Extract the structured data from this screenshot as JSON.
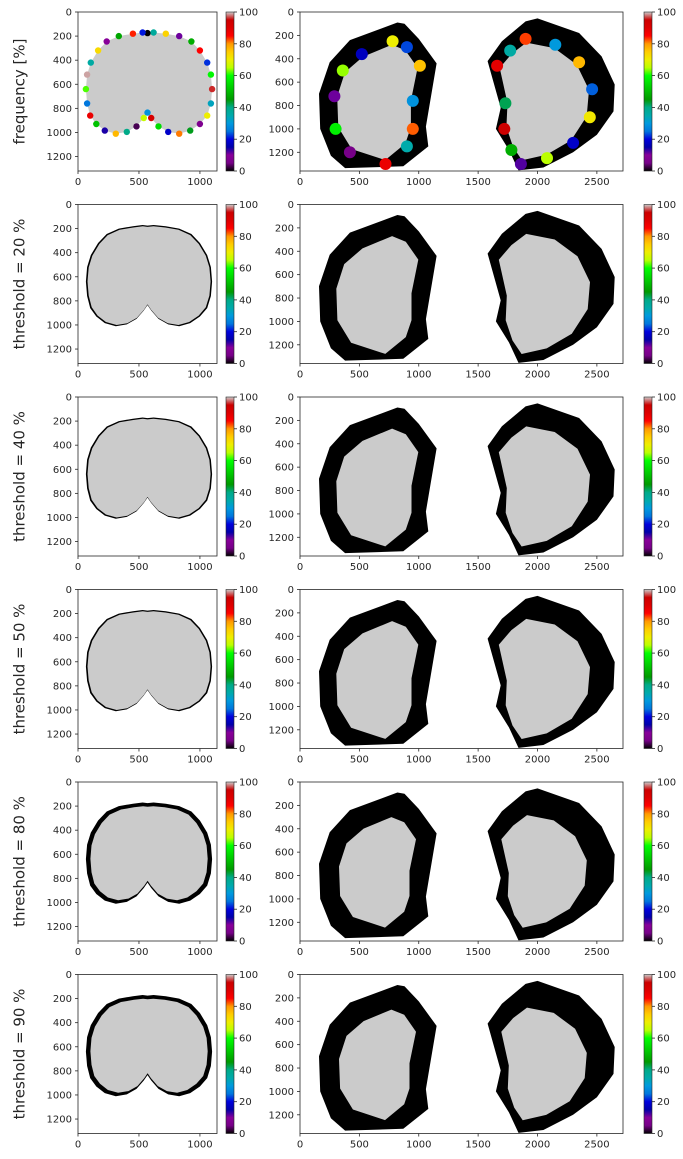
{
  "figure": {
    "colormap": "nipy_spectral",
    "mask_gray": "#cbcbcb",
    "boundary_black": "#000000"
  },
  "chart_data": {
    "type": "heatmap",
    "rows": [
      {
        "label": "frequency [%]",
        "threshold": null
      },
      {
        "label": "threshold = 20 %",
        "threshold": 20
      },
      {
        "label": "threshold = 40 %",
        "threshold": 40
      },
      {
        "label": "threshold = 50 %",
        "threshold": 50
      },
      {
        "label": "threshold = 80 %",
        "threshold": 80
      },
      {
        "label": "threshold = 90 %",
        "threshold": 90
      }
    ],
    "left_panel": {
      "xlim": [
        0,
        1140
      ],
      "ylim": [
        1320,
        0
      ],
      "xticks": [
        0,
        500,
        1000
      ],
      "yticks": [
        0,
        200,
        400,
        600,
        800,
        1000,
        1200
      ]
    },
    "right_panel": {
      "xlim": [
        0,
        2720
      ],
      "ylim": [
        1360,
        0
      ],
      "xticks": [
        0,
        500,
        1000,
        1500,
        2000,
        2500
      ],
      "yticks": [
        0,
        200,
        400,
        600,
        800,
        1000,
        1200
      ]
    },
    "colorbar": {
      "range": [
        0,
        100
      ],
      "ticks": [
        0,
        20,
        40,
        60,
        80,
        100
      ]
    }
  }
}
